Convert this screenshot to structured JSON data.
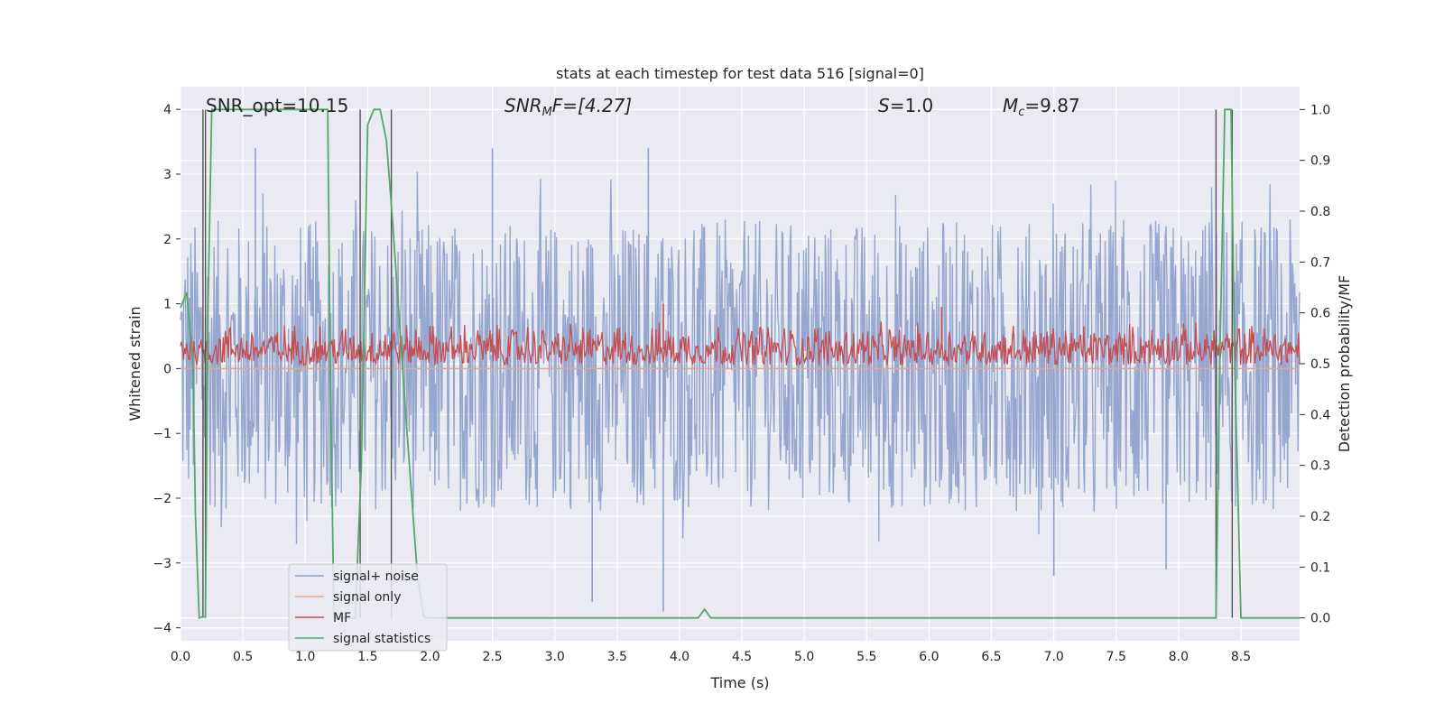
{
  "chart_data": {
    "type": "line",
    "title": "stats at each timestep for test data 516 [signal=0]",
    "xlabel": "Time (s)",
    "ylabel": "Whitened strain",
    "y2label": "Detection probability/MF",
    "xlim": [
      0.0,
      8.97
    ],
    "ylim": [
      -4.2,
      4.35
    ],
    "y2lim": [
      -0.045,
      1.045
    ],
    "xticks": [
      0.0,
      0.5,
      1.0,
      1.5,
      2.0,
      2.5,
      3.0,
      3.5,
      4.0,
      4.5,
      5.0,
      5.5,
      6.0,
      6.5,
      7.0,
      7.5,
      8.0,
      8.5
    ],
    "xtick_labels": [
      "0.0",
      "0.5",
      "1.0",
      "1.5",
      "2.0",
      "2.5",
      "3.0",
      "3.5",
      "4.0",
      "4.5",
      "5.0",
      "5.5",
      "6.0",
      "6.5",
      "7.0",
      "7.5",
      "8.0",
      "8.5"
    ],
    "yticks": [
      4,
      3,
      2,
      1,
      0,
      -1,
      -2,
      -3,
      -4
    ],
    "ytick_labels": [
      "4",
      "3",
      "2",
      "1",
      "0",
      "−1",
      "−2",
      "−3",
      "−4"
    ],
    "y2ticks": [
      1.0,
      0.9,
      0.8,
      0.7,
      0.6,
      0.5,
      0.4,
      0.3,
      0.2,
      0.1,
      0.0
    ],
    "y2tick_labels": [
      "1.0",
      "0.9",
      "0.8",
      "0.7",
      "0.6",
      "0.5",
      "0.4",
      "0.3",
      "0.2",
      "0.1",
      "0.0"
    ],
    "annotations": {
      "snr_opt": "SNR_opt=10.15",
      "snr_mf_sym": "SNR",
      "snr_mf_sub": "M",
      "snr_mf_rest": "F=[4.27]",
      "s_sym": "S",
      "s_rest": "=1.0",
      "mc_sym": "M",
      "mc_sub": "c",
      "mc_rest": "=9.87"
    },
    "colors": {
      "background": "#eaeaf2",
      "grid": "#ffffff",
      "signal_noise": "#8da0cb",
      "signal_only": "#e8a588",
      "mf": "#c44e52",
      "statistics": "#55a868",
      "marker_lines": "#555555"
    },
    "legend": {
      "position": "lower-left",
      "entries": [
        "signal+ noise",
        "signal only",
        "MF",
        "signal statistics"
      ]
    },
    "series": [
      {
        "name": "signal statistics",
        "axis": "right",
        "x": [
          0.0,
          0.05,
          0.1,
          0.12,
          0.15,
          0.17,
          0.2,
          0.22,
          0.25,
          0.28,
          0.5,
          0.8,
          1.0,
          1.15,
          1.18,
          1.2,
          1.23,
          1.27,
          1.4,
          1.45,
          1.5,
          1.55,
          1.6,
          1.65,
          1.7,
          1.75,
          1.8,
          1.85,
          1.9,
          1.95,
          2.0,
          2.5,
          3.0,
          3.5,
          3.9,
          4.15,
          4.2,
          4.25,
          4.5,
          5.0,
          6.0,
          7.0,
          8.0,
          8.3,
          8.33,
          8.37,
          8.42,
          8.45,
          8.5,
          8.97
        ],
        "values": [
          0.61,
          0.64,
          0.5,
          0.2,
          0.0,
          0.002,
          0.002,
          0.6,
          1.0,
          1.0,
          1.0,
          1.0,
          1.0,
          1.0,
          1.0,
          0.5,
          0.0,
          0.0,
          0.0,
          0.3,
          0.97,
          1.0,
          1.0,
          0.94,
          0.78,
          0.6,
          0.42,
          0.25,
          0.08,
          0.002,
          0.0,
          0.0,
          0.0,
          0.0,
          0.0,
          0.0,
          0.017,
          0.0,
          0.0,
          0.0,
          0.0,
          0.0,
          0.0,
          0.0,
          0.5,
          1.0,
          1.0,
          0.5,
          0.0,
          0.0
        ]
      },
      {
        "name": "detection markers",
        "x": [
          0.18,
          0.2,
          1.44,
          1.69,
          8.3,
          8.43
        ]
      },
      {
        "name": "signal+ noise",
        "axis": "left",
        "description_range": [
          -2.2,
          2.3
        ],
        "peaks": [
          {
            "x": 0.6,
            "y": 3.4
          },
          {
            "x": 2.5,
            "y": 3.4
          },
          {
            "x": 3.75,
            "y": 3.4
          },
          {
            "x": 3.3,
            "y": -3.6
          },
          {
            "x": 3.87,
            "y": -3.75
          },
          {
            "x": 7.0,
            "y": -3.2
          },
          {
            "x": 7.9,
            "y": -3.1
          }
        ]
      },
      {
        "name": "MF",
        "axis": "left",
        "description_range": [
          0.05,
          0.75
        ],
        "peaks": [
          {
            "x": 3.87,
            "y": 1.0
          },
          {
            "x": 6.1,
            "y": 0.95
          }
        ]
      },
      {
        "name": "signal only",
        "axis": "left",
        "values_constant": 0.0
      }
    ]
  }
}
